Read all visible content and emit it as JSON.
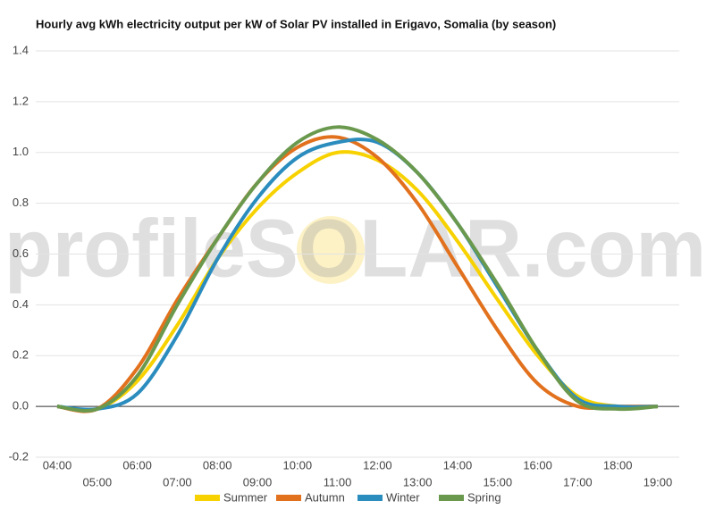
{
  "chart_data": {
    "type": "line",
    "title": "Hourly avg kWh electricity output per kW of Solar PV installed in Erigavo, Somalia (by season)",
    "watermark": "profileSOLAR.com",
    "categories": [
      "04:00",
      "05:00",
      "06:00",
      "07:00",
      "08:00",
      "09:00",
      "10:00",
      "11:00",
      "12:00",
      "13:00",
      "14:00",
      "15:00",
      "16:00",
      "17:00",
      "18:00",
      "19:00"
    ],
    "series": [
      {
        "name": "Summer",
        "color": "#f7d200",
        "values": [
          0,
          -0.01,
          0.1,
          0.32,
          0.58,
          0.78,
          0.92,
          1.0,
          0.97,
          0.85,
          0.65,
          0.42,
          0.2,
          0.04,
          0,
          0
        ]
      },
      {
        "name": "Autumn",
        "color": "#e2711d",
        "values": [
          0,
          -0.01,
          0.15,
          0.42,
          0.66,
          0.88,
          1.02,
          1.06,
          0.98,
          0.8,
          0.55,
          0.3,
          0.09,
          0,
          0,
          0
        ]
      },
      {
        "name": "Winter",
        "color": "#2b8cbe",
        "values": [
          0,
          -0.01,
          0.05,
          0.28,
          0.58,
          0.82,
          0.98,
          1.04,
          1.04,
          0.92,
          0.72,
          0.47,
          0.22,
          0.03,
          0,
          0
        ]
      },
      {
        "name": "Spring",
        "color": "#6a994e",
        "values": [
          0,
          -0.01,
          0.12,
          0.4,
          0.66,
          0.88,
          1.04,
          1.1,
          1.05,
          0.92,
          0.72,
          0.48,
          0.22,
          0.02,
          -0.01,
          0
        ]
      }
    ],
    "ylim": [
      -0.2,
      1.4
    ],
    "yticks": [
      -0.2,
      {
        "value": 0,
        "label": "0.0"
      },
      0.2,
      0.4,
      0.6,
      0.8,
      {
        "value": 1,
        "label": "1.0"
      },
      1.2,
      1.4
    ],
    "grid": true
  }
}
